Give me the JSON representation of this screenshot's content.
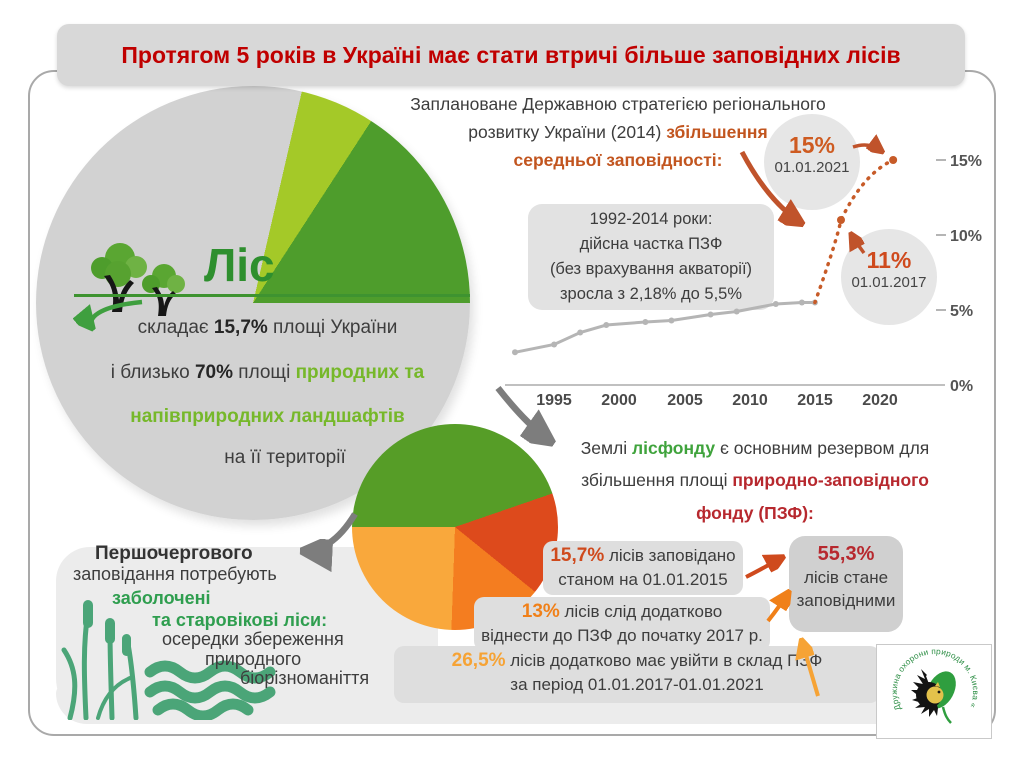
{
  "colors": {
    "title_red": "#c00000",
    "forest_green": "#4e9d2c",
    "lime_green": "#a4c928",
    "bright_green": "#76b82a",
    "rust_orange": "#c2551f",
    "orange": "#f08019",
    "light_orange": "#f6a335",
    "dark_red": "#b7282e",
    "gray_slice": "#d2d2d2",
    "box_gray": "#dedede",
    "panel_gray": "#ececec",
    "wetland_green": "#4ba578"
  },
  "title": {
    "text": "Протягом 5 років в Україні має стати втричі більше заповідних лісів"
  },
  "strategy": {
    "l1": "Заплановане Державною стратегією регіонального",
    "l2a": "розвитку України (2014) ",
    "l2b": "збільшення",
    "l3": "середньої заповідності:"
  },
  "callouts": {
    "c2021": {
      "pct": "15%",
      "date": "01.01.2021"
    },
    "c2017": {
      "pct": "11%",
      "date": "01.01.2017"
    }
  },
  "infobox": {
    "lines": [
      "1992-2014 роки:",
      "дійсна частка ПЗФ",
      "(без врахування акваторії)",
      "зросла з 2,18% до 5,5%"
    ]
  },
  "forest": {
    "brand": "Ліс",
    "l1a": "складає ",
    "l1b": "15,7%",
    "l1c": " площі України",
    "l2a": "і близько ",
    "l2b": "70%",
    "l2c": " площі ",
    "l2d": "природних та",
    "l3": "напівприродних ландшафтів",
    "l4": "на її території"
  },
  "lisfond": {
    "l1a": "Землі ",
    "l1b": "лісфонду",
    "l1c": " є основним резервом для",
    "l2a": "збільшення площі ",
    "l2b": "природно-заповідного",
    "l3": "фонду (ПЗФ):"
  },
  "stats": {
    "s1": {
      "pct": "15,7%",
      "t1": " лісів заповідано",
      "t2": "станом на 01.01.2015"
    },
    "s2": {
      "pct": "13%",
      "t1": " лісів слід додатково",
      "t2": "віднести до ПЗФ до початку 2017 р."
    },
    "s3": {
      "pct": "26,5%",
      "t1": " лісів додатково має увійти в склад ПЗФ",
      "t2": "за період 01.01.2017-01.01.2021"
    },
    "result": {
      "pct": "55,3%",
      "l1": "лісів стане",
      "l2": "заповідними"
    }
  },
  "priority": {
    "l1": "Першочергового",
    "l2": "заповідання потребують",
    "l3": "заболочені",
    "l4": "та старовікові ліси:",
    "l5": "осередки збереження",
    "l6": "природного",
    "l7": "біорізноманіття"
  },
  "logo": {
    "text": "Дружина охорони природи м. Києва «Зелене майбутнє»"
  },
  "chart_data": [
    {
      "type": "line",
      "x_ticks": [
        "1995",
        "2000",
        "2005",
        "2010",
        "2015",
        "2020"
      ],
      "y_ticks": [
        "0%",
        "5%",
        "10%",
        "15%"
      ],
      "xlim": [
        1991,
        2022
      ],
      "ylim": [
        0,
        16
      ],
      "grid": false,
      "legend_position": "none",
      "series": [
        {
          "name": "1992-2014: дійсна частка ПЗФ (без врахування акваторії)",
          "x": [
            1992,
            1995,
            1997,
            1999,
            2002,
            2004,
            2007,
            2009,
            2012,
            2014,
            2015
          ],
          "values": [
            2.18,
            2.7,
            3.5,
            4.0,
            4.2,
            4.3,
            4.7,
            4.9,
            5.4,
            5.5,
            5.5
          ],
          "line": "solid",
          "color": "#b5b5b5"
        },
        {
          "name": "заплановане збільшення середньої заповідності",
          "x": [
            2015,
            2017,
            2021
          ],
          "values": [
            5.5,
            11,
            15
          ],
          "line": "dashed",
          "color": "#c75b28"
        }
      ],
      "annotations": [
        {
          "label": "11%",
          "date": "01.01.2017"
        },
        {
          "label": "15%",
          "date": "01.01.2021"
        }
      ]
    },
    {
      "type": "pie",
      "name": "площа України",
      "values": [
        78.8,
        5.5,
        15.7
      ],
      "colors": [
        "#d2d2d2",
        "#a4c928",
        "#4e9d2c"
      ]
    },
    {
      "type": "pie",
      "name": "лісфонд та ПЗФ",
      "values": [
        44.7,
        15.7,
        13,
        26.5
      ],
      "colors": [
        "#569d27",
        "#dd4a1c",
        "#f47d20",
        "#f9a83c"
      ]
    }
  ]
}
